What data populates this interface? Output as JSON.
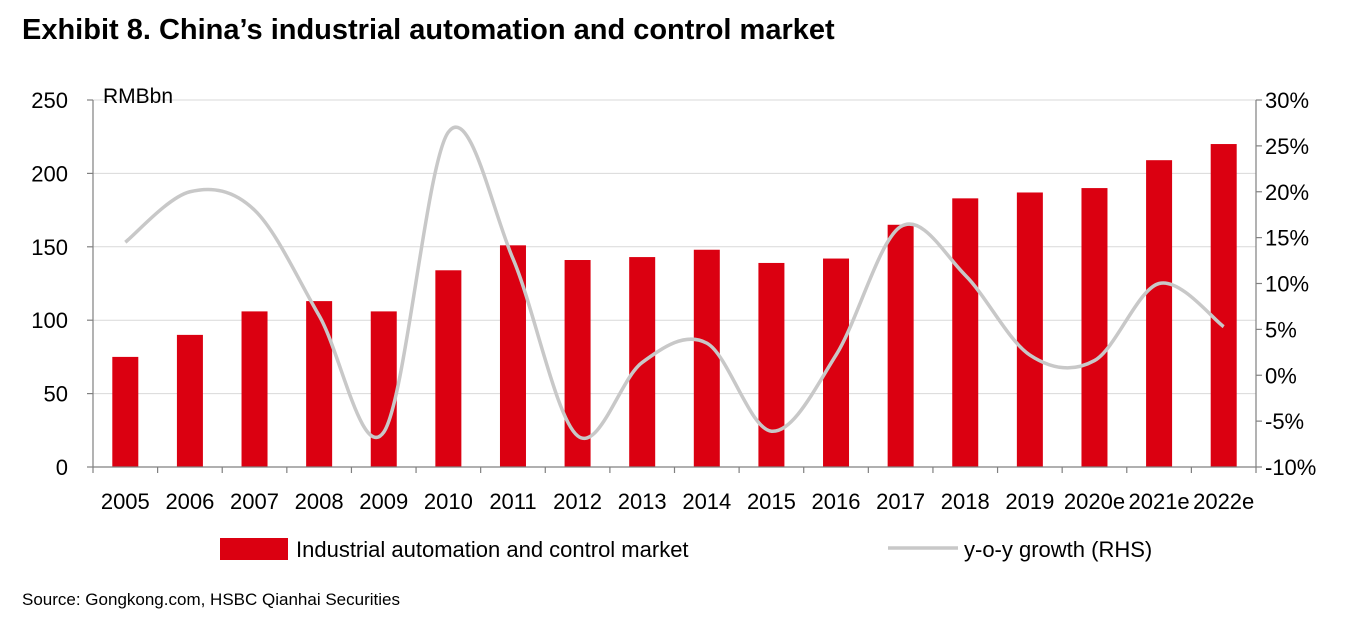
{
  "title": "Exhibit 8. China’s industrial automation and control market",
  "source": "Source: Gongkong.com, HSBC Qianhai Securities",
  "colors": {
    "bar": "#db0011",
    "line": "#c8c8c8",
    "grid": "#d9d9d9",
    "axis": "#808080"
  },
  "chart_data": {
    "type": "bar",
    "categories": [
      "2005",
      "2006",
      "2007",
      "2008",
      "2009",
      "2010",
      "2011",
      "2012",
      "2013",
      "2014",
      "2015",
      "2016",
      "2017",
      "2018",
      "2019",
      "2020e",
      "2021e",
      "2022e"
    ],
    "y_unit_label": "RMBbn",
    "ylim": [
      0,
      250
    ],
    "yticks": [
      "0",
      "50",
      "100",
      "150",
      "200",
      "250"
    ],
    "y2lim": [
      -10,
      30
    ],
    "y2ticks": [
      "-10%",
      "-5%",
      "0%",
      "5%",
      "10%",
      "15%",
      "20%",
      "25%",
      "30%"
    ],
    "grid": true,
    "legend_position": "bottom",
    "series": [
      {
        "name": "Industrial automation and control market",
        "type": "bar",
        "axis": "left",
        "values": [
          75,
          90,
          106,
          113,
          106,
          134,
          151,
          141,
          143,
          148,
          139,
          142,
          165,
          183,
          187,
          190,
          209,
          220
        ]
      },
      {
        "name": "y-o-y growth (RHS)",
        "type": "line",
        "axis": "right",
        "unit": "%",
        "values": [
          14.5,
          20.0,
          18.0,
          6.5,
          -6.2,
          26.5,
          12.7,
          -6.6,
          1.4,
          3.5,
          -6.1,
          2.2,
          16.2,
          10.9,
          2.2,
          1.6,
          10.0,
          5.3
        ]
      }
    ]
  }
}
